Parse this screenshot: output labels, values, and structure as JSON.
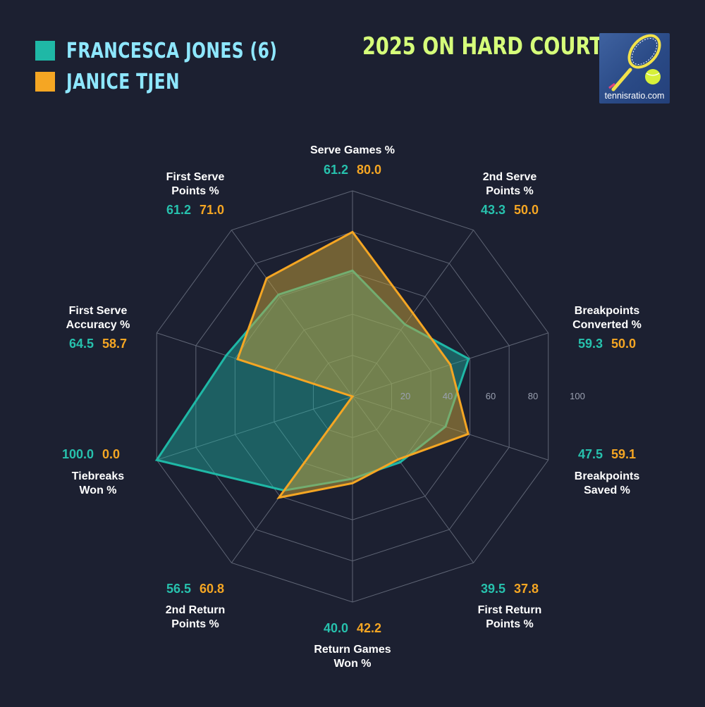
{
  "legend": [
    {
      "name": "FRANCESCA JONES (6)",
      "color": "#1fb8a6"
    },
    {
      "name": "JANICE TJEN",
      "color": "#f5a623"
    }
  ],
  "title": "2025 ON HARD COURTS",
  "logo": {
    "text": "tennisratio.com",
    "icon": "tennis-racket-ball-icon"
  },
  "colors": {
    "background": "#1c2031",
    "grid": "#5f6575",
    "series_a": "#1fb8a6",
    "series_b": "#f5a623",
    "fill_b": "#c8a23a"
  },
  "chart_data": {
    "type": "radar",
    "ylim": [
      0,
      100
    ],
    "ticks": [
      "20",
      "40",
      "60",
      "80",
      "100"
    ],
    "grid": true,
    "categories": [
      [
        "Serve Games %"
      ],
      [
        "2nd Serve",
        "Points %"
      ],
      [
        "Breakpoints",
        "Converted %"
      ],
      [
        "Breakpoints",
        "Saved %"
      ],
      [
        "First Return",
        "Points %"
      ],
      [
        "Return Games",
        "Won %"
      ],
      [
        "2nd Return",
        "Points %"
      ],
      [
        "Tiebreaks",
        "Won %"
      ],
      [
        "First Serve",
        "Accuracy %"
      ],
      [
        "First Serve",
        "Points %"
      ]
    ],
    "series": [
      {
        "name": "FRANCESCA JONES (6)",
        "values": [
          61.2,
          43.3,
          59.3,
          47.5,
          39.5,
          40.0,
          56.5,
          100.0,
          64.5,
          61.2
        ],
        "labels": [
          "61.2",
          "43.3",
          "59.3",
          "47.5",
          "39.5",
          "40.0",
          "56.5",
          "100.0",
          "64.5",
          "61.2"
        ]
      },
      {
        "name": "JANICE TJEN",
        "values": [
          80.0,
          50.0,
          50.0,
          59.1,
          37.8,
          42.2,
          60.8,
          0.0,
          58.7,
          71.0
        ],
        "labels": [
          "80.0",
          "50.0",
          "50.0",
          "59.1",
          "37.8",
          "42.2",
          "60.8",
          "0.0",
          "58.7",
          "71.0"
        ]
      }
    ]
  }
}
